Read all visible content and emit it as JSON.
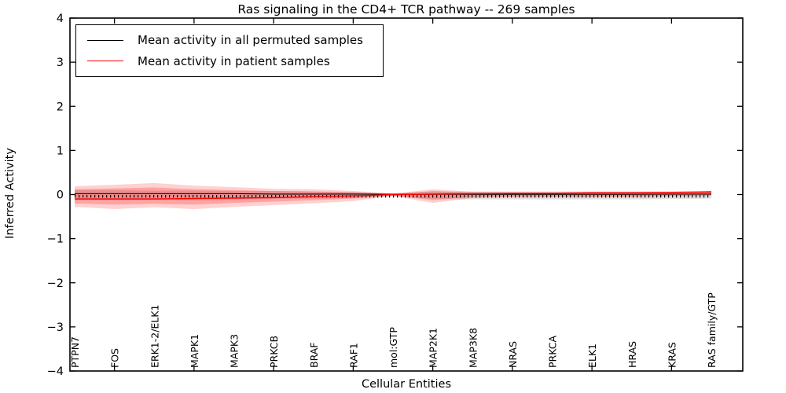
{
  "chart": {
    "title": "Ras signaling in the CD4+ TCR pathway -- 269 samples",
    "xlabel": "Cellular Entities",
    "ylabel": "Inferred Activity"
  },
  "legend": {
    "items": [
      {
        "label": "Mean activity in all permuted samples",
        "color": "#000000"
      },
      {
        "label": "Mean activity in patient samples",
        "color": "#ff0000"
      }
    ]
  },
  "chart_data": {
    "type": "line",
    "title": "Ras signaling in the CD4+ TCR pathway -- 269 samples",
    "xlabel": "Cellular Entities",
    "ylabel": "Inferred Activity",
    "ylim": [
      -4,
      4
    ],
    "ytick_values": [
      4,
      3,
      2,
      1,
      0,
      -1,
      -2,
      -3,
      -4
    ],
    "ytick_labels": [
      "4",
      "3",
      "2",
      "1",
      "0",
      "−1",
      "−2",
      "−3",
      "−4"
    ],
    "grid": false,
    "legend_position": "upper left",
    "categories": [
      "PTPN7",
      "FOS",
      "ERK1-2/ELK1",
      "MAPK1",
      "MAPK3",
      "PRKCB",
      "BRAF",
      "RAF1",
      "mol:GTP",
      "MAP2K1",
      "MAP3K8",
      "NRAS",
      "PRKCA",
      "ELK1",
      "HRAS",
      "KRAS",
      "RAS family/GTP"
    ],
    "x_major_tick_indices": [
      1,
      3,
      5,
      7,
      9,
      11,
      13,
      15
    ],
    "series": [
      {
        "name": "Mean activity in all permuted samples",
        "color": "#000000",
        "values": [
          0.02,
          0.02,
          0.02,
          0.02,
          0.02,
          0.01,
          0.01,
          0.01,
          0.005,
          0.005,
          0.005,
          0.005,
          0.005,
          0.005,
          0.005,
          0.01,
          0.01
        ]
      },
      {
        "name": "Mean activity in patient samples",
        "color": "#ff0000",
        "values": [
          -0.1,
          -0.1,
          -0.1,
          -0.09,
          -0.08,
          -0.07,
          -0.05,
          -0.03,
          0.0,
          0.01,
          0.02,
          0.03,
          0.03,
          0.04,
          0.04,
          0.05,
          0.06
        ]
      }
    ],
    "bands": [
      {
        "name": "permuted-samples-spread",
        "color": "#999999",
        "opacity": 0.3,
        "upper": [
          0.1,
          0.1,
          0.09,
          0.09,
          0.08,
          0.08,
          0.07,
          0.06,
          0.03,
          0.07,
          0.07,
          0.07,
          0.07,
          0.07,
          0.07,
          0.07,
          0.08
        ],
        "lower": [
          -0.13,
          -0.13,
          -0.12,
          -0.12,
          -0.11,
          -0.1,
          -0.09,
          -0.08,
          -0.04,
          -0.1,
          -0.11,
          -0.11,
          -0.11,
          -0.11,
          -0.11,
          -0.1,
          -0.09
        ]
      },
      {
        "name": "patient-samples-spread-outer",
        "color": "#ff0000",
        "opacity": 0.18,
        "upper": [
          0.19,
          0.22,
          0.26,
          0.2,
          0.17,
          0.13,
          0.12,
          0.08,
          0.02,
          0.12,
          0.06,
          0.045,
          0.045,
          0.045,
          0.045,
          0.045,
          0.08
        ],
        "lower": [
          -0.28,
          -0.33,
          -0.29,
          -0.33,
          -0.28,
          -0.24,
          -0.2,
          -0.15,
          -0.03,
          -0.19,
          -0.08,
          -0.06,
          -0.06,
          -0.06,
          -0.06,
          -0.045,
          -0.03
        ]
      },
      {
        "name": "patient-samples-spread-inner",
        "color": "#ff0000",
        "opacity": 0.22,
        "upper": [
          0.12,
          0.14,
          0.16,
          0.12,
          0.1,
          0.08,
          0.07,
          0.05,
          0.01,
          0.08,
          0.04,
          0.03,
          0.03,
          0.03,
          0.03,
          0.03,
          0.05
        ],
        "lower": [
          -0.2,
          -0.23,
          -0.21,
          -0.23,
          -0.19,
          -0.16,
          -0.13,
          -0.09,
          -0.02,
          -0.13,
          -0.05,
          -0.04,
          -0.04,
          -0.04,
          -0.04,
          -0.03,
          -0.02
        ]
      }
    ],
    "marker_tick_style": {
      "color": "#000000",
      "note": "dense small vertical ticks along permuted mean line"
    }
  },
  "layout_colors": {
    "frame": "#000000",
    "background": "#ffffff"
  }
}
